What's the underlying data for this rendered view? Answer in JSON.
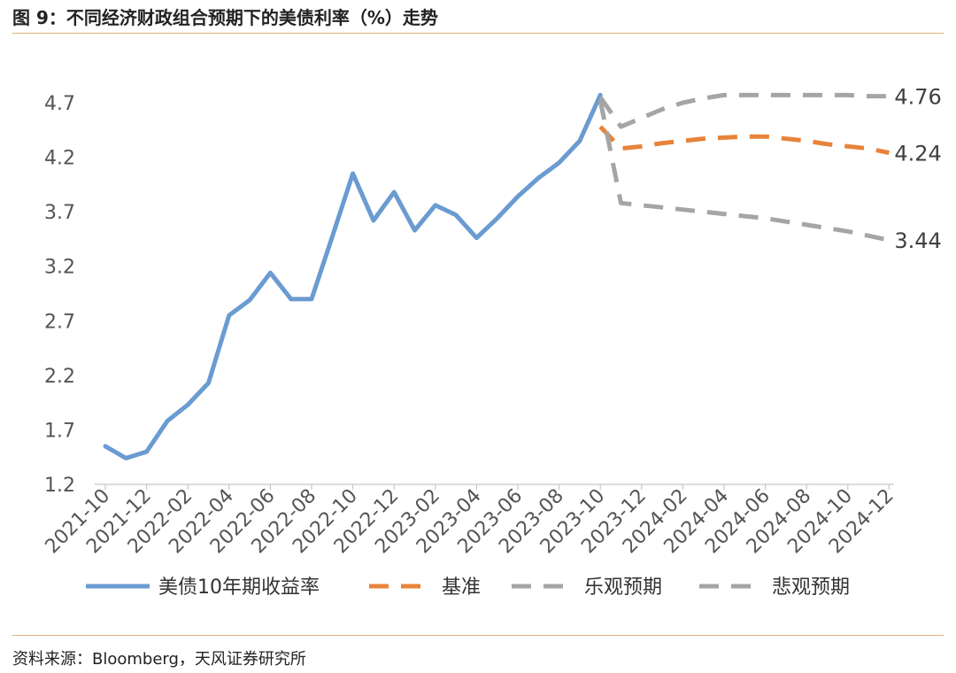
{
  "header": {
    "title": "图 9：不同经济财政组合预期下的美债利率（%）走势"
  },
  "footer": {
    "source": "资料来源：Bloomberg，天风证券研究所"
  },
  "colors": {
    "history": "#6a9bd1",
    "base": "#e8833a",
    "scenario": "#a5a5a5",
    "rule": "#e0b07a"
  },
  "chart_data": {
    "type": "line",
    "title": "图 9：不同经济财政组合预期下的美债利率（%）走势",
    "xlabel": "",
    "ylabel": "",
    "ylim": [
      1.2,
      4.9
    ],
    "yticks": [
      1.2,
      1.7,
      2.2,
      2.7,
      3.2,
      3.7,
      4.2,
      4.7
    ],
    "grid": false,
    "legend_position": "bottom",
    "x_tick_labels": [
      "2021-10",
      "2021-12",
      "2022-02",
      "2022-04",
      "2022-06",
      "2022-08",
      "2022-10",
      "2022-12",
      "2023-02",
      "2023-04",
      "2023-06",
      "2023-08",
      "2023-10",
      "2023-12",
      "2024-02",
      "2024-04",
      "2024-06",
      "2024-08",
      "2024-10",
      "2024-12"
    ],
    "months": [
      "2021-10",
      "2021-11",
      "2021-12",
      "2022-01",
      "2022-02",
      "2022-03",
      "2022-04",
      "2022-05",
      "2022-06",
      "2022-07",
      "2022-08",
      "2022-09",
      "2022-10",
      "2022-11",
      "2022-12",
      "2023-01",
      "2023-02",
      "2023-03",
      "2023-04",
      "2023-05",
      "2023-06",
      "2023-07",
      "2023-08",
      "2023-09",
      "2023-10",
      "2023-11",
      "2023-12",
      "2024-01",
      "2024-02",
      "2024-03",
      "2024-04",
      "2024-05",
      "2024-06",
      "2024-07",
      "2024-08",
      "2024-09",
      "2024-10",
      "2024-11",
      "2024-12"
    ],
    "series": [
      {
        "name": "美债10年期收益率",
        "style": "solid",
        "color": "#6a9bd1",
        "x": [
          "2021-10",
          "2021-11",
          "2021-12",
          "2022-01",
          "2022-02",
          "2022-03",
          "2022-04",
          "2022-05",
          "2022-06",
          "2022-07",
          "2022-08",
          "2022-09",
          "2022-10",
          "2022-11",
          "2022-12",
          "2023-01",
          "2023-02",
          "2023-03",
          "2023-04",
          "2023-05",
          "2023-06",
          "2023-07",
          "2023-08",
          "2023-09",
          "2023-10"
        ],
        "values": [
          1.55,
          1.44,
          1.5,
          1.78,
          1.93,
          2.13,
          2.75,
          2.89,
          3.14,
          2.9,
          2.9,
          3.47,
          4.05,
          3.62,
          3.88,
          3.53,
          3.76,
          3.67,
          3.46,
          3.64,
          3.84,
          4.01,
          4.15,
          4.35,
          4.77
        ]
      },
      {
        "name": "基准",
        "style": "dashed",
        "color": "#e8833a",
        "x": [
          "2023-10",
          "2023-11",
          "2023-12",
          "2024-01",
          "2024-02",
          "2024-03",
          "2024-04",
          "2024-05",
          "2024-06",
          "2024-07",
          "2024-08",
          "2024-09",
          "2024-10",
          "2024-11",
          "2024-12"
        ],
        "values": [
          4.48,
          4.28,
          4.3,
          4.33,
          4.35,
          4.37,
          4.38,
          4.39,
          4.39,
          4.37,
          4.35,
          4.32,
          4.3,
          4.28,
          4.24
        ]
      },
      {
        "name": "乐观预期",
        "style": "dashed",
        "color": "#a5a5a5",
        "x": [
          "2023-10",
          "2023-11",
          "2023-12",
          "2024-01",
          "2024-02",
          "2024-03",
          "2024-04",
          "2024-05",
          "2024-06",
          "2024-07",
          "2024-08",
          "2024-09",
          "2024-10",
          "2024-11",
          "2024-12"
        ],
        "values": [
          4.75,
          4.48,
          4.56,
          4.64,
          4.7,
          4.74,
          4.77,
          4.77,
          4.77,
          4.77,
          4.77,
          4.77,
          4.77,
          4.76,
          4.76
        ]
      },
      {
        "name": "悲观预期",
        "style": "dashed",
        "color": "#a5a5a5",
        "x": [
          "2023-10",
          "2023-11",
          "2023-12",
          "2024-01",
          "2024-02",
          "2024-03",
          "2024-04",
          "2024-05",
          "2024-06",
          "2024-07",
          "2024-08",
          "2024-09",
          "2024-10",
          "2024-11",
          "2024-12"
        ],
        "values": [
          4.72,
          3.78,
          3.76,
          3.74,
          3.72,
          3.7,
          3.68,
          3.66,
          3.64,
          3.61,
          3.58,
          3.55,
          3.52,
          3.48,
          3.44
        ]
      }
    ],
    "annotations": [
      {
        "text": "4.76",
        "x": "2024-12",
        "y": 4.76
      },
      {
        "text": "4.24",
        "x": "2024-12",
        "y": 4.24
      },
      {
        "text": "3.44",
        "x": "2024-12",
        "y": 3.44
      }
    ]
  }
}
